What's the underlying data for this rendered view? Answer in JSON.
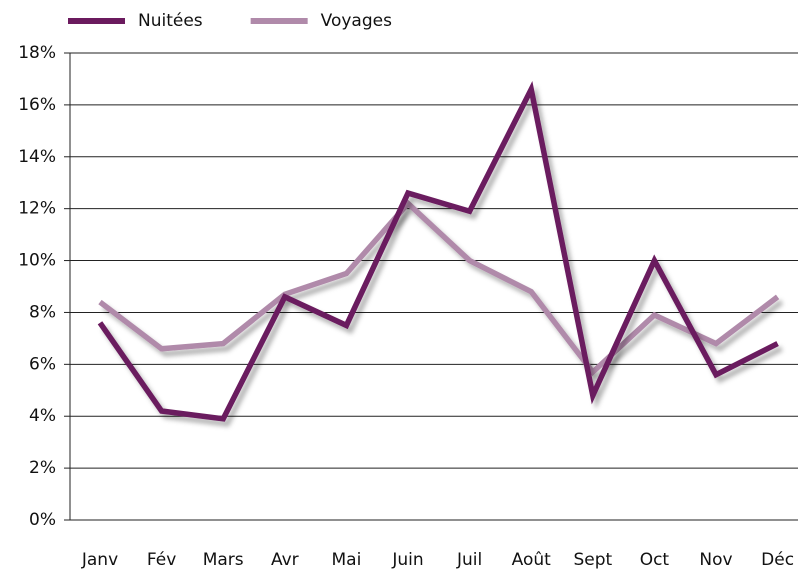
{
  "chart_data": {
    "type": "line",
    "categories": [
      "Janv",
      "Fév",
      "Mars",
      "Avr",
      "Mai",
      "Juin",
      "Juil",
      "Août",
      "Sept",
      "Oct",
      "Nov",
      "Déc"
    ],
    "series": [
      {
        "name": "Nuitées",
        "color": "#6b1a5e",
        "values": [
          7.6,
          4.2,
          3.9,
          8.6,
          7.5,
          12.6,
          11.9,
          16.6,
          4.8,
          10.0,
          5.6,
          6.8
        ]
      },
      {
        "name": "Voyages",
        "color": "#b08aaa",
        "values": [
          8.4,
          6.6,
          6.8,
          8.7,
          9.5,
          12.2,
          10.0,
          8.8,
          5.7,
          7.9,
          6.8,
          8.6
        ]
      }
    ],
    "ylim": [
      0,
      18
    ],
    "yticks": [
      {
        "value": 0,
        "label": "0%"
      },
      {
        "value": 2,
        "label": "2%"
      },
      {
        "value": 4,
        "label": "4%"
      },
      {
        "value": 6,
        "label": "6%"
      },
      {
        "value": 8,
        "label": "8%"
      },
      {
        "value": 10,
        "label": "10%"
      },
      {
        "value": 12,
        "label": "12%"
      },
      {
        "value": 14,
        "label": "14%"
      },
      {
        "value": 16,
        "label": "16%"
      },
      {
        "value": 18,
        "label": "18%"
      }
    ],
    "grid": true,
    "legend": "top"
  }
}
